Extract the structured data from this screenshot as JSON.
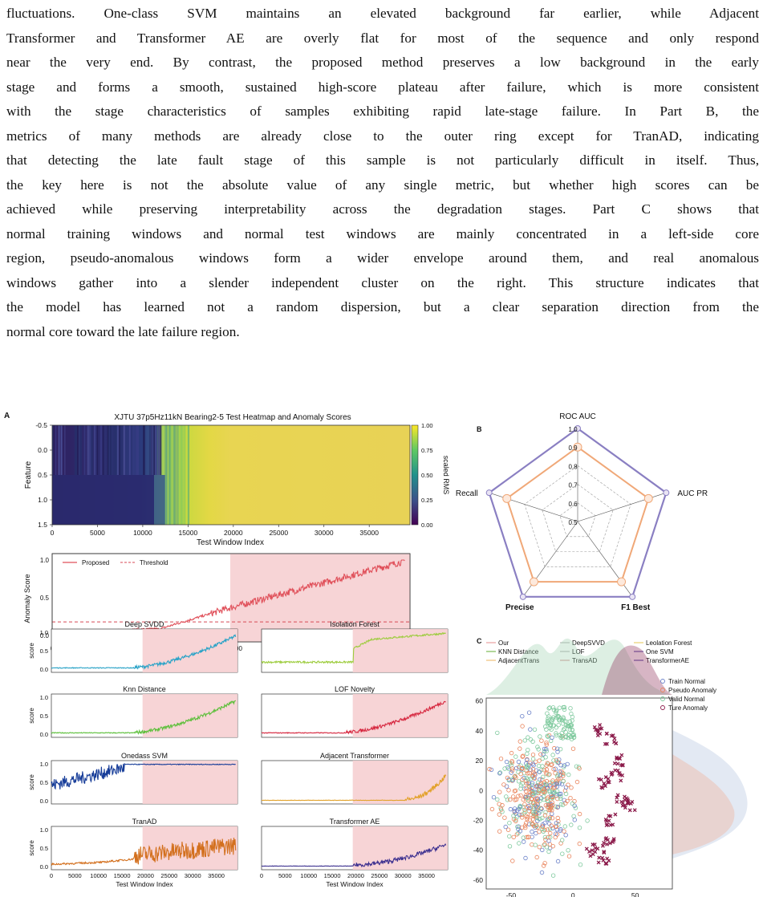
{
  "paragraph": {
    "lines": [
      "fluctuations. One-class SVM maintains an elevated background far earlier, while Adjacent",
      "Transformer and Transformer AE are overly flat for most of the sequence and only respond",
      "near the very end. By contrast, the proposed method preserves a low background in the early",
      "stage and forms a smooth, sustained high-score plateau after failure, which is more consistent",
      "with the stage characteristics of samples exhibiting rapid late-stage failure. In Part B, the",
      "metrics of many methods are already close to the outer ring except for TranAD, indicating",
      "that detecting the late fault stage of this sample is not particularly difficult in itself. Thus,",
      "the key here is not the absolute value of any single metric, but whether high scores can be",
      "achieved while preserving interpretability across the degradation stages. Part C shows that",
      "normal training windows and normal test windows are mainly concentrated in a left-side core",
      "region, pseudo-anomalous windows form a wider envelope around them, and real anomalous",
      "windows gather into a slender independent cluster on the right. This structure indicates that",
      "the model has learned not a random dispersion, but a clear separation direction from the",
      "normal core toward the late failure region."
    ]
  },
  "panel_a": {
    "label": "A",
    "heatmap": {
      "title": "XJTU 37p5Hz11kN Bearing2-5 Test Heatmap and Anomaly Scores",
      "ylabel": "Feature",
      "xlabel": "Test Window Index",
      "yticks": [
        "-0.5",
        "0.0",
        "0.5",
        "1.0",
        "1.5"
      ],
      "xticks": [
        "0",
        "5000",
        "10000",
        "15000",
        "20000",
        "25000",
        "30000",
        "35000"
      ],
      "colorbar_label": "scaled RMS",
      "colorbar_ticks": [
        "1.00",
        "0.75",
        "0.50",
        "0.25",
        "0.00"
      ]
    },
    "score": {
      "ylabel": "Anomaly Score",
      "legend": [
        "Proposed",
        "Threshold"
      ],
      "yticks": [
        "1.0",
        "0.5",
        "0.0"
      ],
      "xticks": [
        "0",
        "5000",
        "10000",
        "15000",
        "20000",
        "25000",
        "30000",
        "35000"
      ],
      "threshold": 0.18,
      "color": "#e0505a"
    },
    "methods": [
      {
        "title": "Deep SVDD",
        "color": "#2aa3c7",
        "style": "late"
      },
      {
        "title": "Isolation Forest",
        "color": "#9ccc3c",
        "style": "step"
      },
      {
        "title": "Knn Distance",
        "color": "#5cbf3a",
        "style": "late"
      },
      {
        "title": "LOF Novelty",
        "color": "#d6273f",
        "style": "late"
      },
      {
        "title": "Onedass SVM",
        "color": "#173d99",
        "style": "early"
      },
      {
        "title": "Adjacent Transformer",
        "color": "#e2a128",
        "style": "flat"
      },
      {
        "title": "TranAD",
        "color": "#d3701e",
        "style": "noisy"
      },
      {
        "title": "Transformer AE",
        "color": "#3b2f8f",
        "style": "flat2"
      }
    ],
    "small_yticks": [
      "1.0",
      "0.5",
      "0.0"
    ],
    "small_ylabel": "score",
    "bottom_xticks": [
      "0",
      "5000",
      "10000",
      "15000",
      "20000",
      "25000",
      "30000",
      "35000"
    ],
    "bottom_xlabel": "Test Window Index"
  },
  "panel_b": {
    "label": "B",
    "axes": [
      "ROC AUC",
      "AUC PR",
      "F1 Best",
      "Precise",
      "Recall"
    ],
    "rings": [
      "0.5",
      "0.6",
      "0.7",
      "0.8",
      "0.9",
      "1.0"
    ],
    "our_values": [
      0.9,
      0.9,
      0.9,
      0.9,
      0.9
    ],
    "legend": [
      "Our",
      "KNN Distance",
      "AdjacentTrans",
      "DeepSVVD",
      "LOF",
      "TransAD",
      "Leolation Forest",
      "One SVM",
      "TransformerAE"
    ],
    "our_color": "#f0a878",
    "outer_color": "#8a7fc2"
  },
  "panel_c": {
    "label": "C",
    "legend": [
      "Train Normal",
      "Pseudo Anomaly",
      "Valid Normal",
      "Ture Anomaly"
    ],
    "yticks": [
      "60",
      "40",
      "20",
      "0",
      "-20",
      "-40",
      "-60"
    ],
    "xticks": [
      "-50",
      "0",
      "50"
    ]
  }
}
